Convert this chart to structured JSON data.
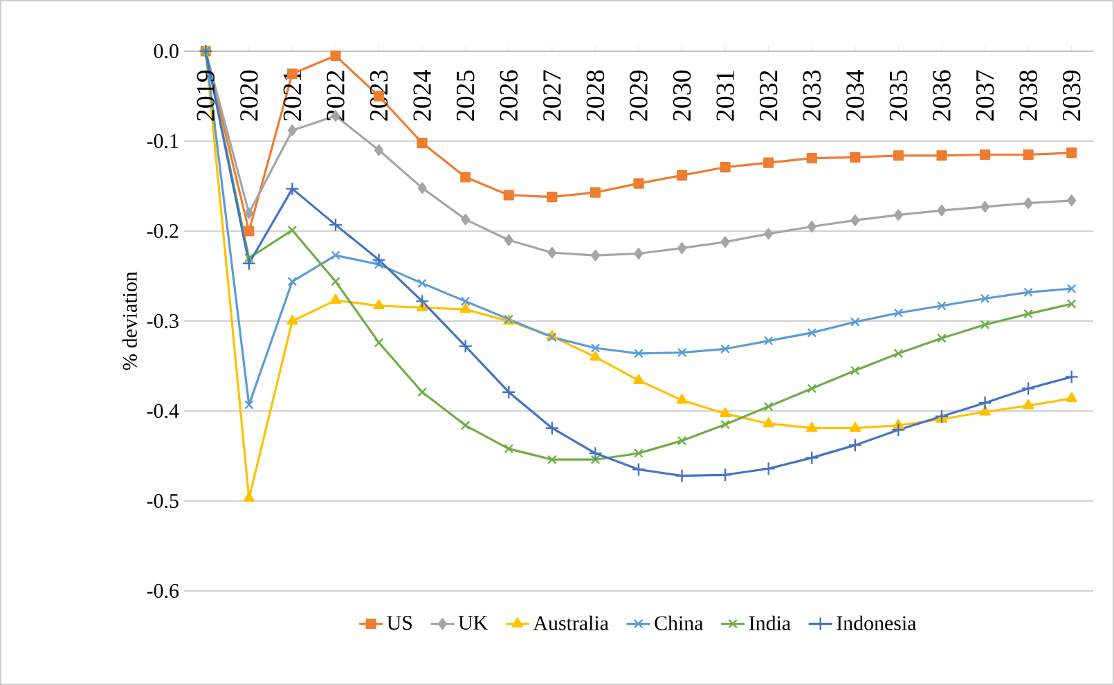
{
  "chart_data": {
    "type": "line",
    "ylabel": "% deviation",
    "categories": [
      "2019",
      "2020",
      "2021",
      "2022",
      "2023",
      "2024",
      "2025",
      "2026",
      "2027",
      "2028",
      "2029",
      "2030",
      "2031",
      "2032",
      "2033",
      "2034",
      "2035",
      "2036",
      "2037",
      "2038",
      "2039"
    ],
    "series": [
      {
        "name": "US",
        "color": "#ed7d31",
        "marker": "square",
        "values": [
          0,
          -0.2,
          -0.025,
          -0.005,
          -0.05,
          -0.102,
          -0.14,
          -0.16,
          -0.162,
          -0.157,
          -0.147,
          -0.138,
          -0.129,
          -0.124,
          -0.119,
          -0.118,
          -0.116,
          -0.116,
          -0.115,
          -0.115,
          -0.113
        ]
      },
      {
        "name": "UK",
        "color": "#a5a5a5",
        "marker": "diamond",
        "values": [
          0,
          -0.18,
          -0.088,
          -0.072,
          -0.11,
          -0.152,
          -0.187,
          -0.21,
          -0.224,
          -0.227,
          -0.225,
          -0.219,
          -0.212,
          -0.203,
          -0.195,
          -0.188,
          -0.182,
          -0.177,
          -0.173,
          -0.169,
          -0.166
        ]
      },
      {
        "name": "Australia",
        "color": "#ffc000",
        "marker": "triangle",
        "values": [
          0,
          -0.497,
          -0.3,
          -0.277,
          -0.283,
          -0.285,
          -0.287,
          -0.3,
          -0.317,
          -0.34,
          -0.366,
          -0.388,
          -0.403,
          -0.414,
          -0.419,
          -0.419,
          -0.416,
          -0.409,
          -0.401,
          -0.394,
          -0.386
        ]
      },
      {
        "name": "China",
        "color": "#5b9bd5",
        "marker": "cross",
        "values": [
          0,
          -0.393,
          -0.256,
          -0.227,
          -0.237,
          -0.258,
          -0.278,
          -0.298,
          -0.318,
          -0.33,
          -0.336,
          -0.335,
          -0.331,
          -0.322,
          -0.313,
          -0.301,
          -0.291,
          -0.283,
          -0.275,
          -0.268,
          -0.264
        ]
      },
      {
        "name": "India",
        "color": "#70ad47",
        "marker": "cross",
        "values": [
          0,
          -0.23,
          -0.199,
          -0.256,
          -0.324,
          -0.379,
          -0.416,
          -0.442,
          -0.454,
          -0.454,
          -0.447,
          -0.433,
          -0.415,
          -0.395,
          -0.375,
          -0.355,
          -0.336,
          -0.319,
          -0.304,
          -0.292,
          -0.281
        ]
      },
      {
        "name": "Indonesia",
        "color": "#4472c4",
        "marker": "plus",
        "values": [
          0,
          -0.236,
          -0.153,
          -0.193,
          -0.232,
          -0.278,
          -0.328,
          -0.379,
          -0.419,
          -0.447,
          -0.465,
          -0.472,
          -0.471,
          -0.464,
          -0.452,
          -0.438,
          -0.421,
          -0.406,
          -0.391,
          -0.375,
          -0.362
        ]
      }
    ],
    "ylim": [
      -0.6,
      0
    ],
    "yticks": [
      {
        "value": 0,
        "label": "0.0"
      },
      -0.1,
      -0.2,
      -0.3,
      -0.4,
      -0.5,
      -0.6
    ],
    "grid": "y",
    "legend": "bottom",
    "line_style": "solid"
  }
}
